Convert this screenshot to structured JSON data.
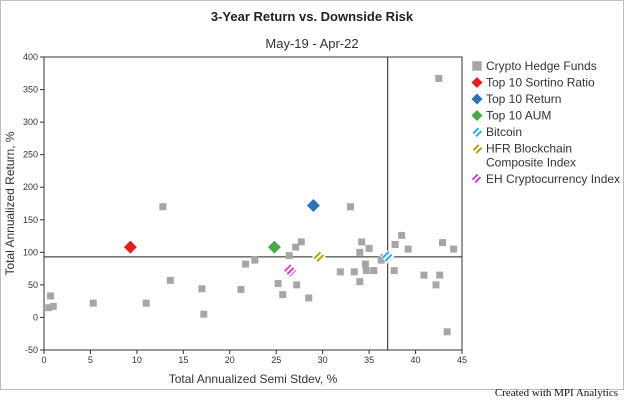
{
  "chart_data": {
    "type": "scatter",
    "title": "3-Year Return vs. Downside Risk",
    "subtitle": "May-19 - Apr-22",
    "xlabel": "Total Annualized Semi Stdev, %",
    "ylabel": "Total Annualized Return, %",
    "xlim": [
      0,
      45
    ],
    "ylim": [
      -50,
      400
    ],
    "xticks": [
      0,
      5,
      10,
      15,
      20,
      25,
      30,
      35,
      40,
      45
    ],
    "yticks": [
      -50,
      0,
      50,
      100,
      150,
      200,
      250,
      300,
      350,
      400
    ],
    "reference_lines": {
      "x": 37,
      "y": 93
    },
    "grid": false,
    "legend_position": "right",
    "series": [
      {
        "name": "Crypto Hedge Funds",
        "marker": "square",
        "color": "#a6a6a6",
        "points": [
          [
            0.5,
            15
          ],
          [
            0.7,
            33
          ],
          [
            1.0,
            17
          ],
          [
            5.3,
            22
          ],
          [
            11.0,
            22
          ],
          [
            12.8,
            170
          ],
          [
            13.6,
            57
          ],
          [
            17.0,
            44
          ],
          [
            17.2,
            5
          ],
          [
            21.2,
            43
          ],
          [
            21.7,
            82
          ],
          [
            22.7,
            88
          ],
          [
            25.2,
            52
          ],
          [
            25.7,
            35
          ],
          [
            26.4,
            95
          ],
          [
            27.1,
            108
          ],
          [
            27.7,
            116
          ],
          [
            27.2,
            50
          ],
          [
            28.5,
            30
          ],
          [
            31.9,
            70
          ],
          [
            33.0,
            170
          ],
          [
            33.4,
            70
          ],
          [
            34.0,
            100
          ],
          [
            34.0,
            55
          ],
          [
            34.2,
            116
          ],
          [
            34.6,
            82
          ],
          [
            34.7,
            72
          ],
          [
            35.0,
            106
          ],
          [
            35.5,
            72
          ],
          [
            36.3,
            88
          ],
          [
            36.6,
            92
          ],
          [
            37.7,
            72
          ],
          [
            37.8,
            112
          ],
          [
            38.5,
            126
          ],
          [
            39.2,
            105
          ],
          [
            40.9,
            65
          ],
          [
            42.2,
            50
          ],
          [
            42.5,
            367
          ],
          [
            42.6,
            65
          ],
          [
            42.9,
            115
          ],
          [
            43.4,
            -22
          ],
          [
            44.1,
            105
          ]
        ]
      },
      {
        "name": "Top 10 Sortino Ratio",
        "marker": "diamond",
        "color": "#e02020",
        "points": [
          [
            9.3,
            108
          ]
        ]
      },
      {
        "name": "Top 10 Return",
        "marker": "diamond",
        "color": "#2e74b5",
        "points": [
          [
            29.0,
            172
          ]
        ]
      },
      {
        "name": "Top 10 AUM",
        "marker": "diamond",
        "color": "#4aa84a",
        "points": [
          [
            24.8,
            108
          ]
        ]
      },
      {
        "name": "Bitcoin",
        "marker": "diamond-hatched",
        "color": "#2ea6e0",
        "points": [
          [
            37.0,
            93
          ]
        ]
      },
      {
        "name": "HFR Blockchain\nComposite Index",
        "marker": "diamond-hatched",
        "color": "#b8a000",
        "points": [
          [
            29.6,
            93
          ]
        ]
      },
      {
        "name": "EH Cryptocurrency Index",
        "marker": "diamond-hatched",
        "color": "#d040d0",
        "points": [
          [
            26.5,
            72
          ]
        ]
      }
    ]
  },
  "footer": {
    "credit": "Created with MPI Analytics"
  }
}
